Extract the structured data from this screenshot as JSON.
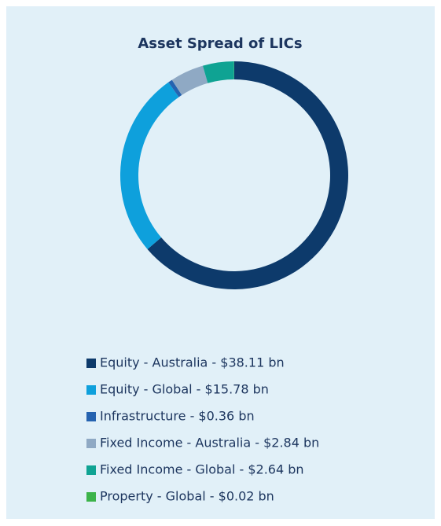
{
  "chart_data": {
    "type": "donut",
    "title": "Asset Spread of LICs",
    "categories": [
      "Equity - Australia - $38.11 bn",
      "Equity - Global - $15.78 bn",
      "Infrastructure - $0.36 bn",
      "Fixed Income - Australia - $2.84 bn",
      "Fixed Income - Global - $2.64 bn",
      "Property - Global - $0.02 bn"
    ],
    "values": [
      38.11,
      15.78,
      0.36,
      2.84,
      2.64,
      0.02
    ],
    "colors": [
      "#0d3a6b",
      "#0ea0dc",
      "#2563b0",
      "#8fa9c4",
      "#0fa393",
      "#3cb34a"
    ],
    "legend": "bottom"
  }
}
